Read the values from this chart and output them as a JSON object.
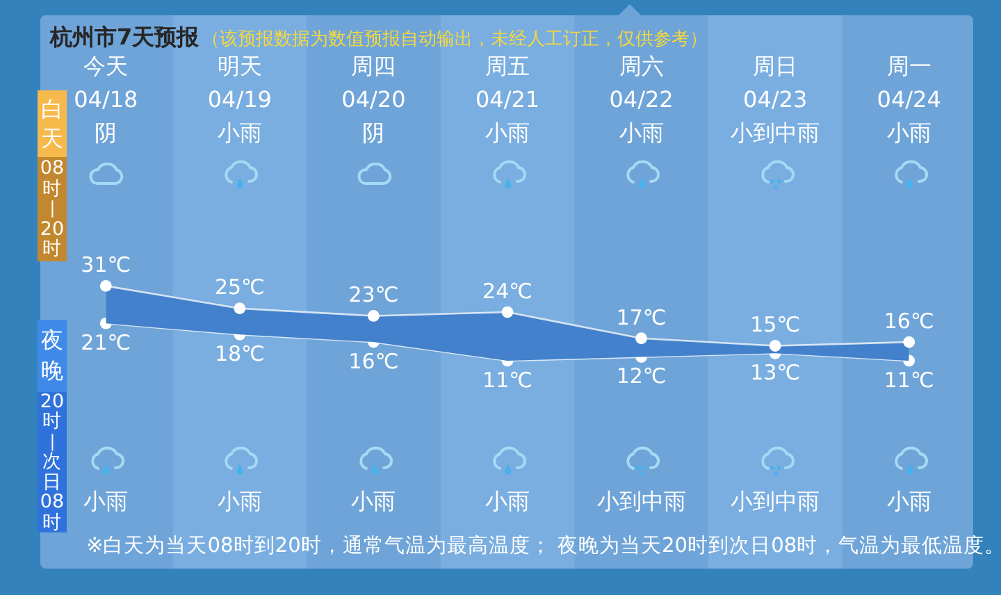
{
  "chart_data": {
    "type": "line",
    "title": "杭州市7天预报",
    "subtitle": "（该预报数据为数值预报自动输出，未经人工订正，仅供参考）",
    "categories": [
      "今天\n04/18\n阴",
      "明天\n04/19\n小雨",
      "周四\n04/20\n阴",
      "周五\n04/21\n小雨",
      "周六\n04/22\n小雨",
      "周日\n04/23\n小到中雨",
      "周一\n04/24\n小雨"
    ],
    "series": [
      {
        "type": "area",
        "color": "#4381cc",
        "values": [
          31,
          25,
          23,
          24,
          17,
          15,
          16
        ],
        "value_labels": [
          "31℃",
          "25℃",
          "23℃",
          "24℃",
          "17℃",
          "15℃",
          "16℃"
        ]
      },
      {
        "type": "line",
        "color": "#ffffff",
        "values": [
          21,
          18,
          16,
          11,
          12,
          13,
          11
        ],
        "value_labels": [
          "21℃",
          "18℃",
          "16℃",
          "11℃",
          "12℃",
          "13℃",
          "11℃"
        ]
      }
    ],
    "bands": [
      {
        "axis": "x",
        "from": "明天\n04/19\n小雨",
        "to": "明天\n04/19\n小雨",
        "color": "#7aaee0"
      },
      {
        "axis": "x",
        "from": "周五\n04/21\n小雨",
        "to": "周五\n04/21\n小雨",
        "color": "#7aaee0"
      },
      {
        "axis": "x",
        "from": "周日\n04/23\n小到中雨",
        "to": "周日\n04/23\n小到中雨",
        "color": "#7aaee0"
      }
    ],
    "annotations": [
      "白天",
      "08时—20时",
      "夜晚",
      "20时—次日08时",
      "小雨",
      "小雨",
      "小雨",
      "小雨",
      "小到中雨",
      "小到中雨",
      "小雨",
      "※白天为当天08时到20时，通常气温为最高温度； 夜晚为当天20时到次日08时，气温为最低温度。"
    ],
    "marker": "circle",
    "grid": false,
    "legend": false,
    "tick_labels": "x"
  }
}
